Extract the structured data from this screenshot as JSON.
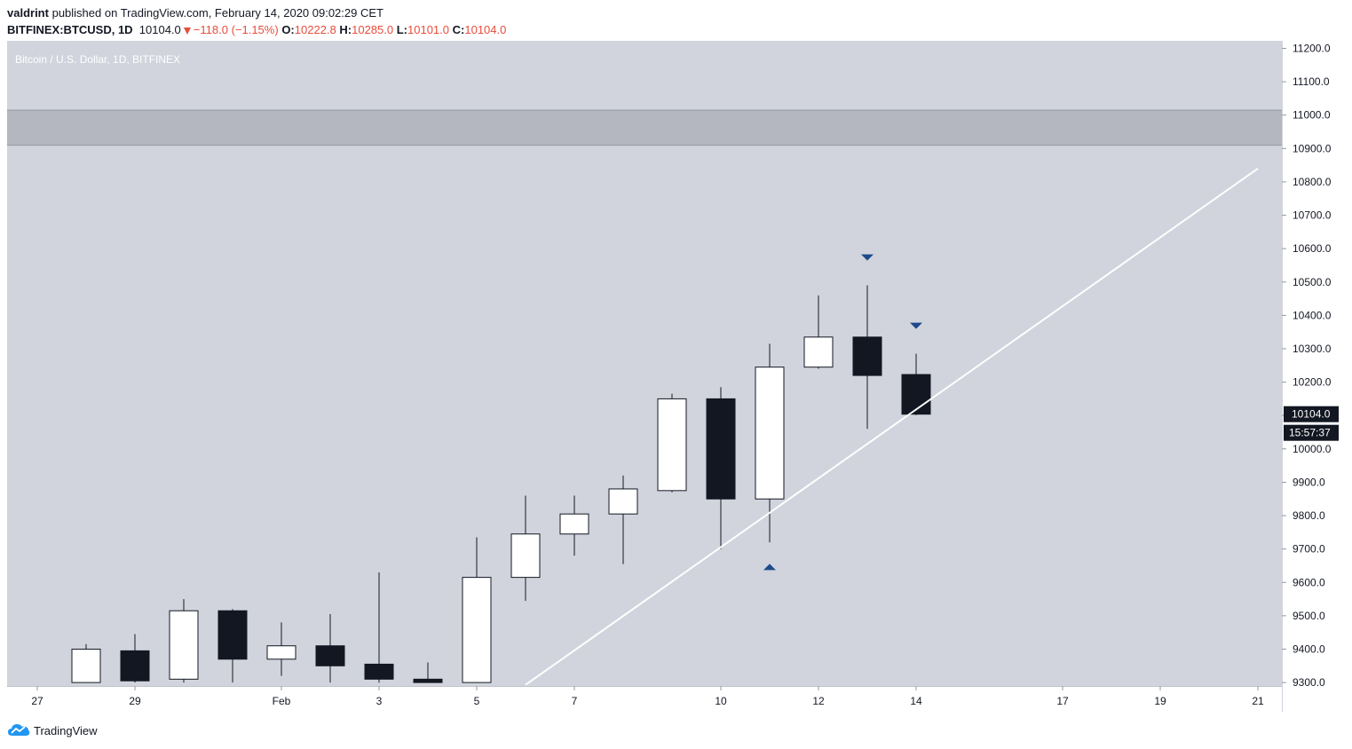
{
  "header": {
    "author": "valdrint",
    "published_text": "published on TradingView.com, February 14, 2020 09:02:29 CET",
    "symbol": "BITFINEX:BTCUSD, 1D",
    "last": "10104.0",
    "change": "−118.0 (−1.15%)",
    "o_label": "O:",
    "o_value": "10222.8",
    "h_label": "H:",
    "h_value": "10285.0",
    "l_label": "L:",
    "l_value": "10101.0",
    "c_label": "C:",
    "c_value": "10104.0"
  },
  "footer": {
    "brand": "TradingView"
  },
  "colors": {
    "pane_bg": "#d1d4dc",
    "zone": "#b4b7bf",
    "bull_body": "#ffffff",
    "bear_body": "#131722",
    "trendline": "#ffffff",
    "marker": "#1e4a8c",
    "price_label_bg": "#131722"
  },
  "chart_data": {
    "type": "candlestick",
    "title": "Bitcoin / U.S. Dollar, 1D, BITFINEX",
    "xlabel": "",
    "ylabel": "",
    "ylim": [
      9300,
      11200
    ],
    "y_ticks": [
      "11200.0",
      "11100.0",
      "11000.0",
      "10900.0",
      "10800.0",
      "10700.0",
      "10600.0",
      "10500.0",
      "10400.0",
      "10300.0",
      "10200.0",
      "10100.0",
      "10000.0",
      "9900.0",
      "9800.0",
      "9700.0",
      "9600.0",
      "9500.0",
      "9400.0",
      "9300.0"
    ],
    "x_ticks": [
      {
        "label": "27",
        "day": -1
      },
      {
        "label": "29",
        "day": 1
      },
      {
        "label": "Feb",
        "day": 4
      },
      {
        "label": "3",
        "day": 6
      },
      {
        "label": "5",
        "day": 8
      },
      {
        "label": "7",
        "day": 10
      },
      {
        "label": "10",
        "day": 13
      },
      {
        "label": "12",
        "day": 15
      },
      {
        "label": "14",
        "day": 17
      },
      {
        "label": "17",
        "day": 20
      },
      {
        "label": "19",
        "day": 22
      },
      {
        "label": "21",
        "day": 24
      }
    ],
    "candles": [
      {
        "date": "2020-01-28",
        "open": 9300,
        "high": 9415,
        "low": 9300,
        "close": 9400
      },
      {
        "date": "2020-01-29",
        "open": 9395,
        "high": 9445,
        "low": 9300,
        "close": 9305
      },
      {
        "date": "2020-01-30",
        "open": 9310,
        "high": 9550,
        "low": 9300,
        "close": 9515
      },
      {
        "date": "2020-01-31",
        "open": 9515,
        "high": 9520,
        "low": 9300,
        "close": 9370
      },
      {
        "date": "2020-02-01",
        "open": 9370,
        "high": 9480,
        "low": 9320,
        "close": 9410
      },
      {
        "date": "2020-02-02",
        "open": 9410,
        "high": 9505,
        "low": 9300,
        "close": 9350
      },
      {
        "date": "2020-02-03",
        "open": 9355,
        "high": 9630,
        "low": 9300,
        "close": 9310
      },
      {
        "date": "2020-02-04",
        "open": 9310,
        "high": 9360,
        "low": 9300,
        "close": 9300
      },
      {
        "date": "2020-02-05",
        "open": 9300,
        "high": 9735,
        "low": 9300,
        "close": 9615
      },
      {
        "date": "2020-02-06",
        "open": 9615,
        "high": 9860,
        "low": 9545,
        "close": 9745
      },
      {
        "date": "2020-02-07",
        "open": 9745,
        "high": 9860,
        "low": 9680,
        "close": 9805
      },
      {
        "date": "2020-02-08",
        "open": 9805,
        "high": 9920,
        "low": 9655,
        "close": 9880
      },
      {
        "date": "2020-02-09",
        "open": 9875,
        "high": 10165,
        "low": 9870,
        "close": 10150
      },
      {
        "date": "2020-02-10",
        "open": 10150,
        "high": 10185,
        "low": 9700,
        "close": 9850
      },
      {
        "date": "2020-02-11",
        "open": 9850,
        "high": 10315,
        "low": 9720,
        "close": 10245
      },
      {
        "date": "2020-02-12",
        "open": 10245,
        "high": 10460,
        "low": 10240,
        "close": 10335
      },
      {
        "date": "2020-02-13",
        "open": 10335,
        "high": 10490,
        "low": 10060,
        "close": 10220
      },
      {
        "date": "2020-02-14",
        "open": 10222.8,
        "high": 10285,
        "low": 10101,
        "close": 10104
      }
    ],
    "resistance_zone": {
      "from": 10910,
      "to": 11015
    },
    "trendline": {
      "from": {
        "date": "2020-02-06",
        "price": 9293
      },
      "to": {
        "date": "2020-02-21",
        "price": 10840
      }
    },
    "markers": [
      {
        "date": "2020-02-13",
        "price": 10575,
        "direction": "down"
      },
      {
        "date": "2020-02-14",
        "price": 10370,
        "direction": "down"
      },
      {
        "date": "2020-02-11",
        "price": 9645,
        "direction": "up"
      }
    ],
    "last_price_label": "10104.0",
    "countdown_label": "15:57:37"
  }
}
